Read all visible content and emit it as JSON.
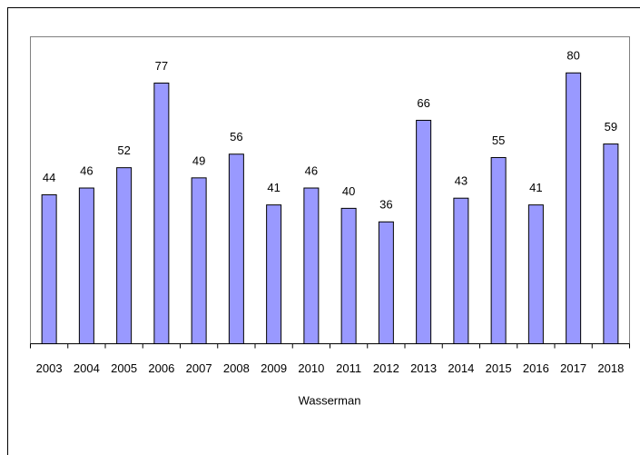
{
  "chart_data": {
    "type": "bar",
    "x_label": "Wasserman",
    "categories": [
      "2003",
      "2004",
      "2005",
      "2006",
      "2007",
      "2008",
      "2009",
      "2010",
      "2011",
      "2012",
      "2013",
      "2014",
      "2015",
      "2016",
      "2017",
      "2018"
    ],
    "values": [
      44,
      46,
      52,
      77,
      49,
      56,
      41,
      46,
      40,
      36,
      66,
      43,
      55,
      41,
      80,
      59
    ],
    "color": "#9999ff",
    "ylim": [
      0,
      90
    ]
  }
}
